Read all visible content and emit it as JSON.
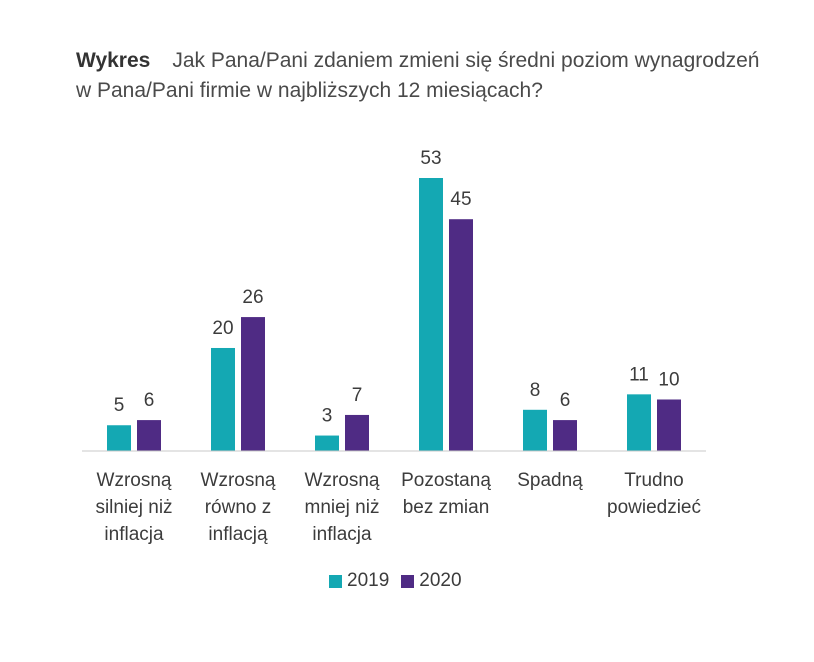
{
  "title": {
    "label": "Wykres",
    "text": "Jak Pana/Pani zdaniem zmieni się średni poziom wynagrodzeń w Pana/Pani firmie w najbliższych 12 miesiącach?"
  },
  "chart_data": {
    "type": "bar",
    "categories": [
      [
        "Wzrosną",
        "silniej niż",
        "inflacja"
      ],
      [
        "Wzrosną",
        "równo z",
        "inflacją"
      ],
      [
        "Wzrosną",
        "mniej niż",
        "inflacja"
      ],
      [
        "Pozostaną",
        "bez zmian"
      ],
      [
        "Spadną"
      ],
      [
        "Trudno",
        "powiedzieć"
      ]
    ],
    "series": [
      {
        "name": "2019",
        "color": "#14a8b3",
        "values": [
          5,
          20,
          3,
          53,
          8,
          11
        ]
      },
      {
        "name": "2020",
        "color": "#4f2b84",
        "values": [
          6,
          26,
          7,
          45,
          6,
          10
        ]
      }
    ],
    "ylim": [
      0,
      53
    ],
    "grid": false,
    "legend_position": "bottom"
  }
}
